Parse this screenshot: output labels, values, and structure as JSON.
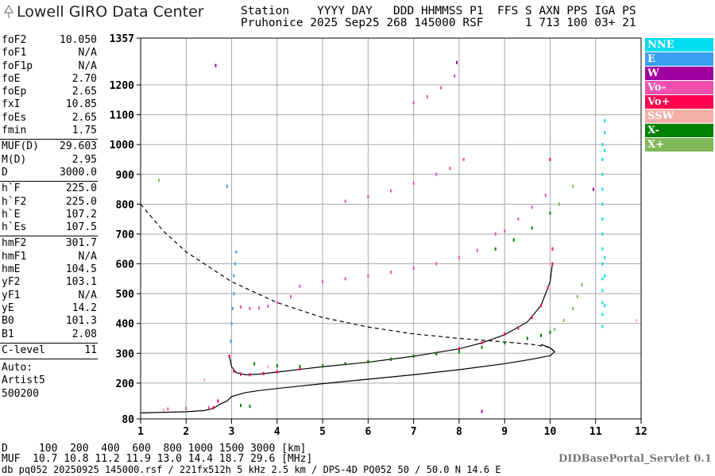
{
  "header": {
    "logo": "Lowell GIRO Data Center",
    "line1": "Station    YYYY DAY   DDD HHMMSS P1  FFS S AXN PPS IGA PS",
    "line2": "Pruhonice 2025 Sep25 268 145000 RSF      1 713 100 03+ 21"
  },
  "parameters": [
    [
      [
        "foF2",
        "10.050"
      ],
      [
        "foF1",
        "N/A"
      ],
      [
        "foF1p",
        "N/A"
      ],
      [
        "foE",
        "2.70"
      ],
      [
        "foEp",
        "2.65"
      ],
      [
        "fxI",
        "10.85"
      ],
      [
        "foEs",
        "2.65"
      ],
      [
        "fmin",
        "1.75"
      ]
    ],
    [
      [
        "MUF(D)",
        "29.603"
      ],
      [
        "M(D)",
        "2.95"
      ],
      [
        "D",
        "3000.0"
      ]
    ],
    [
      [
        "h`F",
        "225.0"
      ],
      [
        "h`F2",
        "225.0"
      ],
      [
        "h`E",
        "107.2"
      ],
      [
        "h`Es",
        "107.5"
      ]
    ],
    [
      [
        "hmF2",
        "301.7"
      ],
      [
        "hmF1",
        "N/A"
      ],
      [
        "hmE",
        "104.5"
      ],
      [
        "yF2",
        "103.1"
      ],
      [
        "yF1",
        "N/A"
      ],
      [
        "yE",
        "14.2"
      ],
      [
        "B0",
        "101.3"
      ],
      [
        "B1",
        "2.08"
      ]
    ],
    [
      [
        "C-level",
        "11"
      ]
    ]
  ],
  "auto": [
    "Auto:",
    "Artist5",
    "500200"
  ],
  "footer": {
    "d_row": "D     100  200  400  600  800 1000 1500 3000 [km]",
    "muf_row": "MUF  10.7 10.8 11.2 11.9 13.0 14.4 18.7 29.6 [MHz]",
    "servlet": "DIDBasePortal_Servlet 0.1",
    "info": "db pq052 20250925 145000.rsf / 221fx512h 5 kHz 2.5 km / DPS-4D PQ052 50 / 50.0 N 14.6 E"
  },
  "chart_data": {
    "type": "scatter",
    "xlim": [
      1,
      12
    ],
    "xticks": [
      1,
      2,
      3,
      4,
      5,
      6,
      7,
      8,
      9,
      10,
      11,
      12
    ],
    "ylim": [
      80,
      1357
    ],
    "yticks": [
      80,
      200,
      300,
      400,
      500,
      600,
      700,
      800,
      900,
      1000,
      1100,
      1200,
      1357
    ],
    "grid": true,
    "series": [
      {
        "name": "NNE",
        "color": "#00dcf0",
        "x": [
          11.15,
          11.15,
          11.15,
          11.15,
          11.15,
          11.15,
          11.15,
          11.15,
          11.15,
          11.15,
          11.15,
          11.15,
          11.15,
          11.15,
          11.2,
          11.2,
          11.2,
          11.2,
          11.2,
          11.2
        ],
        "values": [
          390,
          430,
          470,
          510,
          550,
          600,
          650,
          700,
          750,
          800,
          850,
          900,
          950,
          1000,
          1040,
          1080,
          560,
          620,
          460,
          980
        ]
      },
      {
        "name": "E",
        "color": "#3ca0f0",
        "x": [
          2.95,
          2.98,
          3.0,
          3.02,
          3.05,
          3.05,
          3.08,
          3.1,
          2.9
        ],
        "values": [
          290,
          340,
          400,
          450,
          500,
          560,
          600,
          640,
          860
        ]
      },
      {
        "name": "W",
        "color": "#a000a0",
        "x": [
          2.65,
          7.95,
          10.95,
          8.5
        ],
        "values": [
          1265,
          1275,
          850,
          105
        ]
      },
      {
        "name": "Vo-",
        "color": "#f050b0",
        "x": [
          3.2,
          3.4,
          3.6,
          3.8,
          4.0,
          4.3,
          4.5,
          5.0,
          5.5,
          6.0,
          6.5,
          7.0,
          7.5,
          8.0,
          8.4,
          8.8,
          9.0,
          9.3,
          9.6,
          9.9,
          5.5,
          6.0,
          6.5,
          7.0,
          7.5,
          7.8,
          8.1,
          7.0,
          7.3,
          7.6,
          7.9,
          1.6,
          2.0,
          2.5
        ],
        "values": [
          455,
          450,
          452,
          458,
          470,
          490,
          525,
          540,
          550,
          560,
          572,
          585,
          600,
          620,
          645,
          700,
          710,
          750,
          790,
          830,
          810,
          825,
          845,
          870,
          900,
          920,
          950,
          1140,
          1160,
          1190,
          1230,
          113,
          115,
          118
        ]
      },
      {
        "name": "Vo+",
        "color": "#ff0050",
        "x": [
          2.95,
          3.05,
          3.2,
          3.4,
          3.7,
          4.0,
          4.5,
          5.0,
          5.5,
          6.0,
          6.5,
          7.0,
          7.5,
          8.0,
          8.5,
          9.0,
          9.3,
          9.6,
          9.8,
          9.95,
          10.05,
          10.05,
          10.0,
          2.6,
          2.7
        ],
        "values": [
          290,
          240,
          230,
          228,
          232,
          238,
          248,
          257,
          265,
          272,
          280,
          290,
          300,
          315,
          335,
          365,
          385,
          420,
          460,
          520,
          600,
          650,
          950,
          118,
          140
        ]
      },
      {
        "name": "SSW",
        "color": "#f4b0a8",
        "x": [
          1.5,
          2.4,
          3.8,
          11.9
        ],
        "values": [
          110,
          210,
          255,
          410
        ]
      },
      {
        "name": "X-",
        "color": "#008000",
        "x": [
          3.5,
          4.0,
          4.5,
          5.0,
          5.5,
          6.0,
          6.5,
          7.0,
          7.5,
          8.0,
          8.5,
          9.0,
          9.5,
          9.8,
          10.0,
          8.8,
          9.2,
          9.6,
          10.0,
          3.2,
          3.4
        ],
        "values": [
          265,
          258,
          256,
          258,
          265,
          272,
          280,
          290,
          298,
          305,
          320,
          335,
          350,
          360,
          370,
          650,
          680,
          720,
          770,
          125,
          122
        ]
      },
      {
        "name": "X+",
        "color": "#80b858",
        "x": [
          10.1,
          10.3,
          10.5,
          10.6,
          10.7,
          10.2,
          10.5,
          1.4
        ],
        "values": [
          380,
          410,
          450,
          490,
          530,
          800,
          860,
          880
        ]
      }
    ],
    "lines": [
      {
        "color": "#000000",
        "dash": false,
        "x": [
          2.95,
          3.0,
          3.1,
          3.3,
          3.6,
          4.0,
          5.0,
          6.0,
          7.0,
          8.0,
          8.5,
          9.0,
          9.5,
          9.8,
          10.0,
          10.05
        ],
        "values": [
          290,
          255,
          235,
          228,
          230,
          237,
          255,
          270,
          290,
          315,
          335,
          362,
          405,
          460,
          540,
          600
        ]
      },
      {
        "color": "#000000",
        "dash": false,
        "x": [
          1.0,
          1.5,
          2.0,
          2.4,
          2.6,
          2.75,
          2.9,
          3.0,
          3.3,
          3.6,
          4.0,
          5.0,
          6.0,
          7.0,
          8.0,
          9.0,
          9.6,
          10.0,
          10.1,
          10.0,
          9.8
        ],
        "values": [
          100,
          102,
          104,
          108,
          115,
          130,
          140,
          155,
          168,
          175,
          182,
          198,
          213,
          228,
          245,
          265,
          280,
          292,
          305,
          318,
          330
        ]
      },
      {
        "color": "#000000",
        "dash": true,
        "x": [
          1.0,
          1.5,
          2.0,
          3.0,
          4.0,
          5.0,
          6.0,
          7.0,
          8.0,
          9.0,
          9.6,
          10.0,
          10.1
        ],
        "values": [
          800,
          710,
          640,
          540,
          470,
          420,
          388,
          365,
          350,
          338,
          330,
          320,
          305
        ]
      }
    ]
  }
}
